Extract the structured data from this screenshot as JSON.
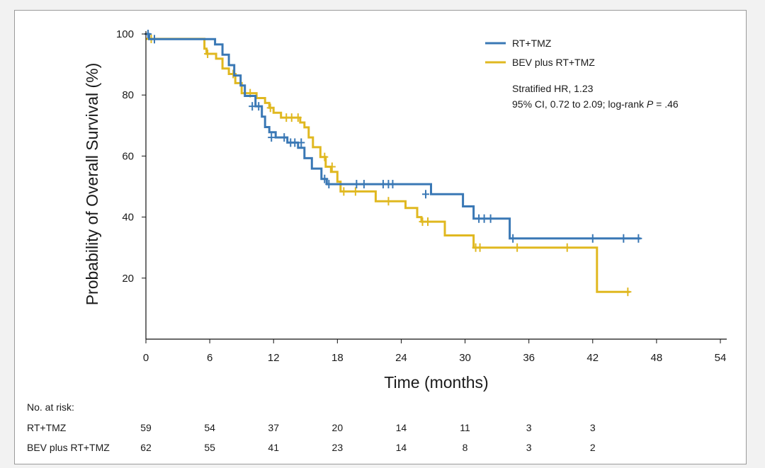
{
  "chart_data": {
    "type": "line",
    "subtype": "kaplan-meier",
    "xlabel": "Time (months)",
    "ylabel": "Probability of Overall Survival (%)",
    "xlim": [
      0,
      54
    ],
    "ylim": [
      0,
      100
    ],
    "x_ticks": [
      "0",
      "6",
      "12",
      "18",
      "24",
      "30",
      "36",
      "42",
      "48",
      "54"
    ],
    "y_ticks": [
      "20",
      "40",
      "60",
      "80",
      "100"
    ],
    "legend_position": "top-right",
    "grid": false,
    "annotation": {
      "line1": "Stratified HR, 1.23",
      "line2_prefix": "95% CI, 0.72 to 2.09; log-rank ",
      "line2_italic": "P",
      "line2_suffix": " = .46"
    },
    "series": [
      {
        "name": "RT+TMZ",
        "color": "#3a78b5",
        "steps": [
          [
            0,
            100
          ],
          [
            0.3,
            98.3
          ],
          [
            5.8,
            98.3
          ],
          [
            6.5,
            96.6
          ],
          [
            7.2,
            93.2
          ],
          [
            7.8,
            89.8
          ],
          [
            8.3,
            86.4
          ],
          [
            8.9,
            83.1
          ],
          [
            9.3,
            79.7
          ],
          [
            10.3,
            76.3
          ],
          [
            10.9,
            72.9
          ],
          [
            11.2,
            69.5
          ],
          [
            11.6,
            67.8
          ],
          [
            12.2,
            66.1
          ],
          [
            13.3,
            64.4
          ],
          [
            14.3,
            62.7
          ],
          [
            14.9,
            59.3
          ],
          [
            15.6,
            55.9
          ],
          [
            16.5,
            52.5
          ],
          [
            17.0,
            50.8
          ],
          [
            26.8,
            50.8
          ],
          [
            26.8,
            47.5
          ],
          [
            29.8,
            47.5
          ],
          [
            29.8,
            43.5
          ],
          [
            30.8,
            39.5
          ],
          [
            33.8,
            39.5
          ],
          [
            34.2,
            33.0
          ],
          [
            46.5,
            33.0
          ]
        ],
        "censor": [
          [
            0.2,
            100
          ],
          [
            0.8,
            98.3
          ],
          [
            10.0,
            76.3
          ],
          [
            10.6,
            76.3
          ],
          [
            11.8,
            66.1
          ],
          [
            13.0,
            66.1
          ],
          [
            13.6,
            64.4
          ],
          [
            14.0,
            64.4
          ],
          [
            14.6,
            64.4
          ],
          [
            16.8,
            52.5
          ],
          [
            17.2,
            50.8
          ],
          [
            19.8,
            50.8
          ],
          [
            20.5,
            50.8
          ],
          [
            22.3,
            50.8
          ],
          [
            22.8,
            50.8
          ],
          [
            23.2,
            50.8
          ],
          [
            26.3,
            47.5
          ],
          [
            31.3,
            39.5
          ],
          [
            31.8,
            39.5
          ],
          [
            32.4,
            39.5
          ],
          [
            34.5,
            33.0
          ],
          [
            42.0,
            33.0
          ],
          [
            44.9,
            33.0
          ],
          [
            46.3,
            33.0
          ]
        ]
      },
      {
        "name": "BEV plus RT+TMZ",
        "color": "#e0b820",
        "steps": [
          [
            0,
            98.4
          ],
          [
            5.2,
            98.4
          ],
          [
            5.5,
            95.2
          ],
          [
            5.7,
            93.5
          ],
          [
            6.6,
            91.9
          ],
          [
            7.2,
            88.7
          ],
          [
            7.8,
            86.9
          ],
          [
            8.4,
            83.9
          ],
          [
            9.0,
            80.6
          ],
          [
            10.4,
            79.0
          ],
          [
            11.2,
            77.4
          ],
          [
            11.6,
            75.8
          ],
          [
            12.0,
            74.2
          ],
          [
            12.7,
            72.6
          ],
          [
            14.5,
            71.0
          ],
          [
            14.9,
            69.4
          ],
          [
            15.3,
            66.1
          ],
          [
            15.7,
            62.9
          ],
          [
            16.4,
            59.7
          ],
          [
            16.9,
            56.5
          ],
          [
            17.4,
            54.8
          ],
          [
            18.0,
            51.6
          ],
          [
            18.3,
            48.4
          ],
          [
            21.0,
            48.4
          ],
          [
            21.6,
            45.2
          ],
          [
            24.0,
            45.2
          ],
          [
            24.4,
            43.0
          ],
          [
            25.5,
            40.0
          ],
          [
            25.9,
            38.5
          ],
          [
            28.1,
            38.5
          ],
          [
            28.1,
            34.0
          ],
          [
            30.8,
            34.0
          ],
          [
            30.8,
            30.0
          ],
          [
            42.4,
            30.0
          ],
          [
            42.4,
            15.5
          ],
          [
            45.5,
            15.5
          ]
        ],
        "censor": [
          [
            0.5,
            98.4
          ],
          [
            5.8,
            93.5
          ],
          [
            8.2,
            86.9
          ],
          [
            9.8,
            80.6
          ],
          [
            11.7,
            75.8
          ],
          [
            13.2,
            72.6
          ],
          [
            13.7,
            72.6
          ],
          [
            14.3,
            72.6
          ],
          [
            16.8,
            59.7
          ],
          [
            17.5,
            56.5
          ],
          [
            18.6,
            48.4
          ],
          [
            19.7,
            48.4
          ],
          [
            22.8,
            45.2
          ],
          [
            26.0,
            38.5
          ],
          [
            26.5,
            38.5
          ],
          [
            31.0,
            30.0
          ],
          [
            31.4,
            30.0
          ],
          [
            34.9,
            30.0
          ],
          [
            39.6,
            30.0
          ],
          [
            45.3,
            15.5
          ]
        ]
      }
    ],
    "risk_table": {
      "title": "No. at risk:",
      "times": [
        0,
        6,
        12,
        18,
        24,
        30,
        36,
        42
      ],
      "rows": [
        {
          "label": "RT+TMZ",
          "values": [
            "59",
            "54",
            "37",
            "20",
            "14",
            "11",
            "3",
            "3"
          ]
        },
        {
          "label": "BEV plus RT+TMZ",
          "values": [
            "62",
            "55",
            "41",
            "23",
            "14",
            "8",
            "3",
            "2"
          ]
        }
      ]
    }
  }
}
